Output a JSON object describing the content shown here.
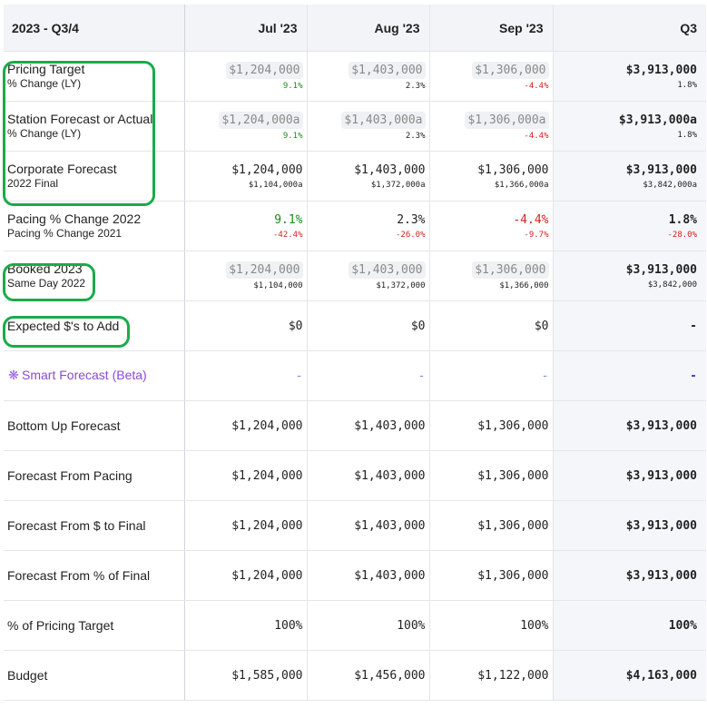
{
  "header": {
    "period": "2023 - Q3/4",
    "months": [
      "Jul '23",
      "Aug '23",
      "Sep '23"
    ],
    "total": "Q3"
  },
  "rows": {
    "pricing_target": {
      "label": "Pricing Target",
      "sub": "% Change (LY)",
      "values": [
        "$1,204,000",
        "$1,403,000",
        "$1,306,000"
      ],
      "total": "$3,913,000",
      "subs": [
        "9.1%",
        "2.3%",
        "-4.4%"
      ],
      "total_sub": "1.8%"
    },
    "station_forecast": {
      "label": "Station Forecast or Actual",
      "sub": "% Change (LY)",
      "values": [
        "$1,204,000a",
        "$1,403,000a",
        "$1,306,000a"
      ],
      "total": "$3,913,000a",
      "subs": [
        "9.1%",
        "2.3%",
        "-4.4%"
      ],
      "total_sub": "1.8%"
    },
    "corporate_forecast": {
      "label": "Corporate Forecast",
      "sub": "2022 Final",
      "values": [
        "$1,204,000",
        "$1,403,000",
        "$1,306,000"
      ],
      "total": "$3,913,000",
      "subs": [
        "$1,104,000a",
        "$1,372,000a",
        "$1,366,000a"
      ],
      "total_sub": "$3,842,000a"
    },
    "pacing": {
      "label": "Pacing % Change 2022",
      "sub": "Pacing % Change 2021",
      "values": [
        "9.1%",
        "2.3%",
        "-4.4%"
      ],
      "total": "1.8%",
      "subs": [
        "-42.4%",
        "-26.0%",
        "-9.7%"
      ],
      "total_sub": "-28.0%"
    },
    "booked": {
      "label": "Booked 2023",
      "sub": "Same Day 2022",
      "values": [
        "$1,204,000",
        "$1,403,000",
        "$1,306,000"
      ],
      "total": "$3,913,000",
      "subs": [
        "$1,104,000",
        "$1,372,000",
        "$1,366,000"
      ],
      "total_sub": "$3,842,000"
    },
    "expected": {
      "label": "Expected $'s to Add",
      "values": [
        "$0",
        "$0",
        "$0"
      ],
      "total": "-"
    },
    "smart_forecast": {
      "label": "Smart Forecast (Beta)",
      "values": [
        "-",
        "-",
        "-"
      ],
      "total": "-"
    },
    "bottom_up": {
      "label": "Bottom Up Forecast",
      "values": [
        "$1,204,000",
        "$1,403,000",
        "$1,306,000"
      ],
      "total": "$3,913,000"
    },
    "from_pacing": {
      "label": "Forecast From Pacing",
      "values": [
        "$1,204,000",
        "$1,403,000",
        "$1,306,000"
      ],
      "total": "$3,913,000"
    },
    "from_dollar": {
      "label": "Forecast From $ to Final",
      "values": [
        "$1,204,000",
        "$1,403,000",
        "$1,306,000"
      ],
      "total": "$3,913,000"
    },
    "from_percent": {
      "label": "Forecast From % of Final",
      "values": [
        "$1,204,000",
        "$1,403,000",
        "$1,306,000"
      ],
      "total": "$3,913,000"
    },
    "pct_pricing": {
      "label": "% of Pricing Target",
      "values": [
        "100%",
        "100%",
        "100%"
      ],
      "total": "100%"
    },
    "budget": {
      "label": "Budget",
      "values": [
        "$1,585,000",
        "$1,456,000",
        "$1,122,000"
      ],
      "total": "$4,163,000"
    }
  },
  "icons": {
    "smart_forecast": "atom-icon"
  },
  "colors": {
    "highlight": "#1aab4a",
    "positive": "#1a8a1a",
    "negative": "#d92020",
    "smart": "#8a4ad6"
  }
}
